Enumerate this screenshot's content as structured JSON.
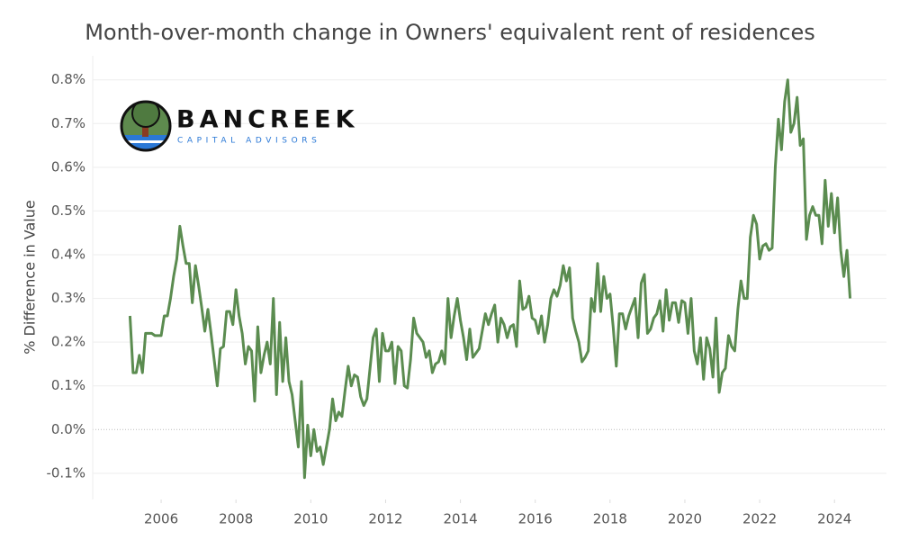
{
  "chart_data": {
    "type": "line",
    "title": "Month-over-month change in Owners' equivalent rent of residences",
    "y_label": "% Difference in Value",
    "logo": {
      "name": "BANCREEK",
      "tagline": "CAPITAL ADVISORS"
    },
    "color": "#5b8c50",
    "grid": true,
    "xlim": [
      2004.17,
      2025.39
    ],
    "ylim": [
      -0.16,
      0.855
    ],
    "xticks": [
      2006,
      2008,
      2010,
      2012,
      2014,
      2016,
      2018,
      2020,
      2022,
      2024
    ],
    "yticks": [
      {
        "value": -0.1,
        "label": "-0.1%"
      },
      {
        "value": 0,
        "label": "0.0%"
      },
      {
        "value": 0.1,
        "label": "0.1%"
      },
      {
        "value": 0.2,
        "label": "0.2%"
      },
      {
        "value": 0.3,
        "label": "0.3%"
      },
      {
        "value": 0.4,
        "label": "0.4%"
      },
      {
        "value": 0.5,
        "label": "0.5%"
      },
      {
        "value": 0.6,
        "label": "0.6%"
      },
      {
        "value": 0.7,
        "label": "0.7%"
      },
      {
        "value": 0.8,
        "label": "0.8%"
      }
    ],
    "x": [
      2005.167,
      2005.25,
      2005.333,
      2005.417,
      2005.5,
      2005.583,
      2005.667,
      2005.75,
      2005.833,
      2005.917,
      2006,
      2006.083,
      2006.167,
      2006.25,
      2006.333,
      2006.417,
      2006.5,
      2006.583,
      2006.667,
      2006.75,
      2006.833,
      2006.917,
      2007,
      2007.083,
      2007.167,
      2007.25,
      2007.333,
      2007.417,
      2007.5,
      2007.583,
      2007.667,
      2007.75,
      2007.833,
      2007.917,
      2008,
      2008.083,
      2008.167,
      2008.25,
      2008.333,
      2008.417,
      2008.5,
      2008.583,
      2008.667,
      2008.75,
      2008.833,
      2008.917,
      2009,
      2009.083,
      2009.167,
      2009.25,
      2009.333,
      2009.417,
      2009.5,
      2009.583,
      2009.667,
      2009.75,
      2009.833,
      2009.917,
      2010,
      2010.083,
      2010.167,
      2010.25,
      2010.333,
      2010.417,
      2010.5,
      2010.583,
      2010.667,
      2010.75,
      2010.833,
      2010.917,
      2011,
      2011.083,
      2011.167,
      2011.25,
      2011.333,
      2011.417,
      2011.5,
      2011.583,
      2011.667,
      2011.75,
      2011.833,
      2011.917,
      2012,
      2012.083,
      2012.167,
      2012.25,
      2012.333,
      2012.417,
      2012.5,
      2012.583,
      2012.667,
      2012.75,
      2012.833,
      2012.917,
      2013,
      2013.083,
      2013.167,
      2013.25,
      2013.333,
      2013.417,
      2013.5,
      2013.583,
      2013.667,
      2013.75,
      2013.833,
      2013.917,
      2014,
      2014.083,
      2014.167,
      2014.25,
      2014.333,
      2014.417,
      2014.5,
      2014.583,
      2014.667,
      2014.75,
      2014.833,
      2014.917,
      2015,
      2015.083,
      2015.167,
      2015.25,
      2015.333,
      2015.417,
      2015.5,
      2015.583,
      2015.667,
      2015.75,
      2015.833,
      2015.917,
      2016,
      2016.083,
      2016.167,
      2016.25,
      2016.333,
      2016.417,
      2016.5,
      2016.583,
      2016.667,
      2016.75,
      2016.833,
      2016.917,
      2017,
      2017.083,
      2017.167,
      2017.25,
      2017.333,
      2017.417,
      2017.5,
      2017.583,
      2017.667,
      2017.75,
      2017.833,
      2017.917,
      2018,
      2018.083,
      2018.167,
      2018.25,
      2018.333,
      2018.417,
      2018.5,
      2018.583,
      2018.667,
      2018.75,
      2018.833,
      2018.917,
      2019,
      2019.083,
      2019.167,
      2019.25,
      2019.333,
      2019.417,
      2019.5,
      2019.583,
      2019.667,
      2019.75,
      2019.833,
      2019.917,
      2020,
      2020.083,
      2020.167,
      2020.25,
      2020.333,
      2020.417,
      2020.5,
      2020.583,
      2020.667,
      2020.75,
      2020.833,
      2020.917,
      2021,
      2021.083,
      2021.167,
      2021.25,
      2021.333,
      2021.417,
      2021.5,
      2021.583,
      2021.667,
      2021.75,
      2021.833,
      2021.917,
      2022,
      2022.083,
      2022.167,
      2022.25,
      2022.333,
      2022.417,
      2022.5,
      2022.583,
      2022.667,
      2022.75,
      2022.833,
      2022.917,
      2023,
      2023.083,
      2023.167,
      2023.25,
      2023.333,
      2023.417,
      2023.5,
      2023.583,
      2023.667,
      2023.75,
      2023.833,
      2023.917,
      2024,
      2024.083,
      2024.167,
      2024.25,
      2024.333,
      2024.417
    ],
    "values": [
      0.26,
      0.13,
      0.13,
      0.17,
      0.13,
      0.22,
      0.22,
      0.22,
      0.215,
      0.215,
      0.215,
      0.26,
      0.26,
      0.3,
      0.35,
      0.39,
      0.465,
      0.42,
      0.38,
      0.38,
      0.29,
      0.375,
      0.33,
      0.28,
      0.225,
      0.275,
      0.22,
      0.16,
      0.1,
      0.185,
      0.19,
      0.27,
      0.27,
      0.24,
      0.32,
      0.26,
      0.22,
      0.15,
      0.19,
      0.18,
      0.065,
      0.235,
      0.13,
      0.17,
      0.2,
      0.15,
      0.3,
      0.08,
      0.245,
      0.11,
      0.21,
      0.11,
      0.08,
      0.02,
      -0.04,
      0.11,
      -0.11,
      0.01,
      -0.06,
      0.0,
      -0.05,
      -0.04,
      -0.08,
      -0.04,
      0.0,
      0.07,
      0.02,
      0.04,
      0.03,
      0.09,
      0.145,
      0.1,
      0.125,
      0.12,
      0.075,
      0.055,
      0.07,
      0.14,
      0.21,
      0.23,
      0.11,
      0.22,
      0.18,
      0.18,
      0.2,
      0.105,
      0.19,
      0.18,
      0.1,
      0.095,
      0.16,
      0.255,
      0.22,
      0.21,
      0.2,
      0.165,
      0.18,
      0.13,
      0.15,
      0.155,
      0.18,
      0.15,
      0.3,
      0.21,
      0.26,
      0.3,
      0.25,
      0.21,
      0.16,
      0.23,
      0.165,
      0.175,
      0.185,
      0.225,
      0.265,
      0.24,
      0.265,
      0.285,
      0.2,
      0.255,
      0.24,
      0.21,
      0.235,
      0.24,
      0.19,
      0.34,
      0.275,
      0.28,
      0.305,
      0.255,
      0.25,
      0.22,
      0.26,
      0.2,
      0.24,
      0.3,
      0.32,
      0.305,
      0.33,
      0.375,
      0.34,
      0.37,
      0.255,
      0.225,
      0.2,
      0.155,
      0.165,
      0.18,
      0.3,
      0.27,
      0.38,
      0.27,
      0.35,
      0.3,
      0.31,
      0.235,
      0.145,
      0.265,
      0.265,
      0.23,
      0.26,
      0.28,
      0.3,
      0.21,
      0.335,
      0.355,
      0.22,
      0.23,
      0.255,
      0.265,
      0.295,
      0.225,
      0.32,
      0.25,
      0.29,
      0.29,
      0.245,
      0.295,
      0.29,
      0.22,
      0.3,
      0.18,
      0.15,
      0.21,
      0.115,
      0.21,
      0.185,
      0.12,
      0.255,
      0.085,
      0.13,
      0.14,
      0.215,
      0.19,
      0.18,
      0.275,
      0.34,
      0.3,
      0.3,
      0.44,
      0.49,
      0.47,
      0.39,
      0.42,
      0.425,
      0.41,
      0.415,
      0.6,
      0.71,
      0.64,
      0.75,
      0.8,
      0.68,
      0.7,
      0.76,
      0.65,
      0.665,
      0.435,
      0.49,
      0.51,
      0.49,
      0.49,
      0.425,
      0.57,
      0.465,
      0.54,
      0.45,
      0.53,
      0.41,
      0.35,
      0.41,
      0.3
    ]
  }
}
